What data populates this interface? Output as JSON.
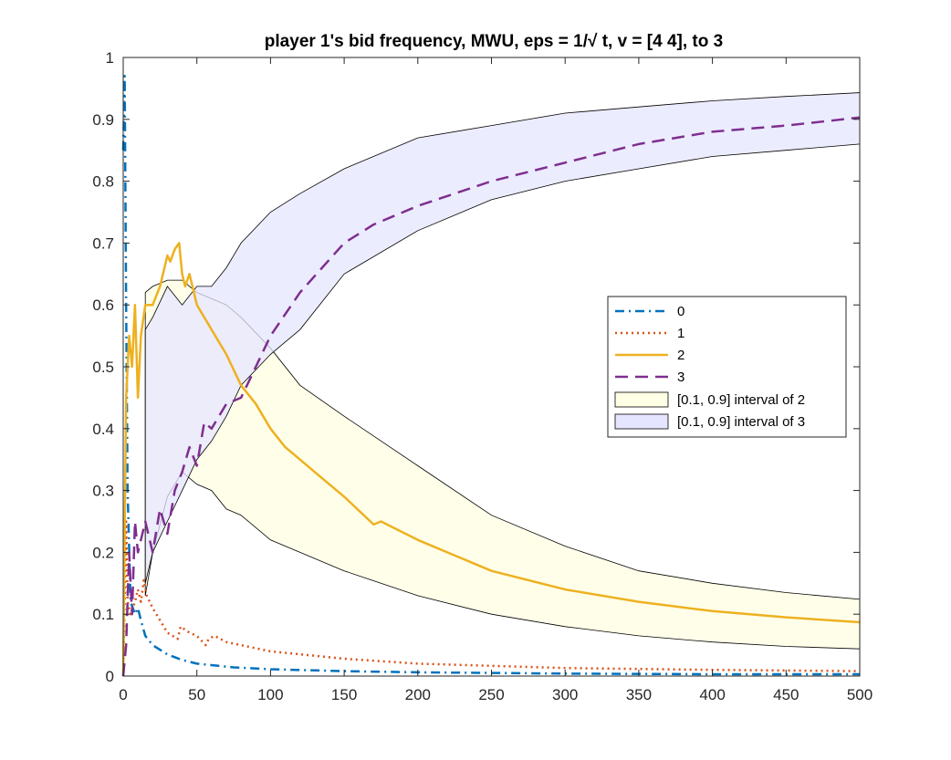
{
  "chart_data": {
    "type": "line",
    "title": "player 1's bid frequency, MWU, eps = 1/√ t, v = [4  4], to 3",
    "xlabel": "",
    "ylabel": "",
    "xlim": [
      0,
      500
    ],
    "ylim": [
      0,
      1
    ],
    "xticks": [
      0,
      50,
      100,
      150,
      200,
      250,
      300,
      350,
      400,
      450,
      500
    ],
    "yticks": [
      0,
      0.1,
      0.2,
      0.3,
      0.4,
      0.5,
      0.6,
      0.7,
      0.8,
      0.9,
      1
    ],
    "ytick_labels": [
      "0",
      "0.1",
      "0.2",
      "0.3",
      "0.4",
      "0.5",
      "0.6",
      "0.7",
      "0.8",
      "0.9",
      "1"
    ],
    "legend_position": "middle-right",
    "series": [
      {
        "name": "0",
        "style": "dash-dot",
        "color": "#0072BD",
        "x": [
          0,
          1,
          2,
          3,
          5,
          8,
          10,
          12,
          15,
          20,
          30,
          40,
          50,
          75,
          100,
          150,
          200,
          300,
          400,
          500
        ],
        "y": [
          0.85,
          0.97,
          0.6,
          0.3,
          0.12,
          0.1,
          0.11,
          0.09,
          0.065,
          0.05,
          0.035,
          0.026,
          0.02,
          0.014,
          0.011,
          0.008,
          0.006,
          0.004,
          0.003,
          0.003
        ]
      },
      {
        "name": "1",
        "style": "dotted",
        "color": "#D95319",
        "x": [
          0,
          2,
          3,
          5,
          8,
          10,
          12,
          14,
          16,
          20,
          30,
          37,
          39,
          45,
          50,
          56,
          58,
          62,
          70,
          80,
          100,
          150,
          200,
          300,
          400,
          500
        ],
        "y": [
          0.0,
          0.25,
          0.12,
          0.1,
          0.12,
          0.14,
          0.12,
          0.155,
          0.13,
          0.11,
          0.07,
          0.06,
          0.08,
          0.07,
          0.065,
          0.05,
          0.06,
          0.065,
          0.055,
          0.05,
          0.04,
          0.028,
          0.02,
          0.013,
          0.01,
          0.008
        ]
      },
      {
        "name": "2",
        "style": "solid",
        "color": "#EDB120",
        "x": [
          0,
          2,
          4,
          6,
          8,
          10,
          12,
          15,
          20,
          25,
          30,
          32,
          35,
          38,
          40,
          42,
          45,
          48,
          50,
          55,
          60,
          65,
          70,
          80,
          90,
          100,
          110,
          120,
          130,
          150,
          170,
          175,
          200,
          250,
          300,
          350,
          400,
          450,
          500
        ],
        "y": [
          0.0,
          0.45,
          0.55,
          0.5,
          0.6,
          0.45,
          0.55,
          0.6,
          0.6,
          0.63,
          0.68,
          0.67,
          0.69,
          0.7,
          0.65,
          0.63,
          0.65,
          0.62,
          0.6,
          0.58,
          0.56,
          0.54,
          0.52,
          0.47,
          0.44,
          0.4,
          0.37,
          0.35,
          0.33,
          0.29,
          0.245,
          0.25,
          0.22,
          0.17,
          0.14,
          0.12,
          0.105,
          0.095,
          0.087
        ]
      },
      {
        "name": "3",
        "style": "dashed",
        "color": "#7E2F8E",
        "x": [
          0,
          2,
          4,
          6,
          8,
          10,
          12,
          15,
          20,
          25,
          30,
          35,
          40,
          45,
          50,
          55,
          60,
          70,
          80,
          90,
          100,
          120,
          150,
          170,
          200,
          250,
          300,
          350,
          400,
          450,
          500
        ],
        "y": [
          0.0,
          0.05,
          0.2,
          0.1,
          0.25,
          0.2,
          0.22,
          0.25,
          0.2,
          0.27,
          0.23,
          0.3,
          0.33,
          0.37,
          0.34,
          0.41,
          0.4,
          0.44,
          0.45,
          0.5,
          0.55,
          0.62,
          0.7,
          0.73,
          0.76,
          0.8,
          0.83,
          0.86,
          0.88,
          0.89,
          0.903
        ]
      }
    ],
    "bands": [
      {
        "name": "[0.1, 0.9] interval of 2",
        "fill": "#FFFFE5",
        "x": [
          15,
          20,
          30,
          40,
          50,
          60,
          70,
          80,
          100,
          120,
          150,
          200,
          250,
          300,
          350,
          400,
          450,
          500
        ],
        "lower": [
          0.13,
          0.2,
          0.29,
          0.33,
          0.31,
          0.3,
          0.27,
          0.26,
          0.22,
          0.2,
          0.17,
          0.13,
          0.1,
          0.08,
          0.065,
          0.055,
          0.048,
          0.044
        ],
        "upper": [
          0.62,
          0.63,
          0.64,
          0.64,
          0.62,
          0.61,
          0.6,
          0.58,
          0.53,
          0.47,
          0.42,
          0.34,
          0.26,
          0.21,
          0.17,
          0.15,
          0.135,
          0.124
        ]
      },
      {
        "name": "[0.1, 0.9] interval of 3",
        "fill": "#E5E5FF",
        "x": [
          15,
          20,
          30,
          40,
          50,
          60,
          70,
          80,
          100,
          120,
          150,
          200,
          250,
          300,
          350,
          400,
          450,
          500
        ],
        "lower": [
          0.15,
          0.2,
          0.25,
          0.3,
          0.35,
          0.38,
          0.42,
          0.47,
          0.52,
          0.56,
          0.65,
          0.72,
          0.77,
          0.8,
          0.82,
          0.84,
          0.85,
          0.86
        ],
        "upper": [
          0.56,
          0.58,
          0.63,
          0.6,
          0.63,
          0.63,
          0.66,
          0.7,
          0.75,
          0.78,
          0.82,
          0.87,
          0.89,
          0.91,
          0.92,
          0.93,
          0.937,
          0.943
        ]
      }
    ],
    "legend": {
      "entries": [
        "0",
        "1",
        "2",
        "3",
        "[0.1, 0.9] interval of 2",
        "[0.1, 0.9] interval of 3"
      ]
    }
  }
}
